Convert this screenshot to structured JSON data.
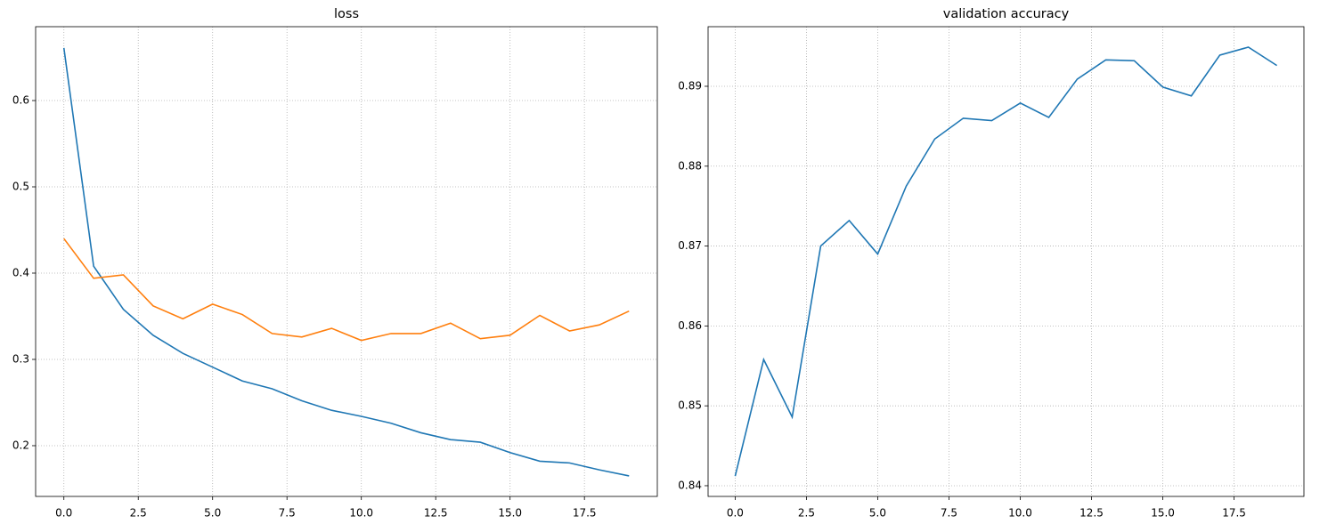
{
  "chart_data": [
    {
      "type": "line",
      "title": "loss",
      "x": [
        0,
        1,
        2,
        3,
        4,
        5,
        6,
        7,
        8,
        9,
        10,
        11,
        12,
        13,
        14,
        15,
        16,
        17,
        18,
        19
      ],
      "series": [
        {
          "color": "#1f77b4",
          "values": [
            0.661,
            0.408,
            0.358,
            0.328,
            0.307,
            0.291,
            0.275,
            0.266,
            0.252,
            0.241,
            0.234,
            0.226,
            0.215,
            0.207,
            0.204,
            0.192,
            0.182,
            0.18,
            0.172,
            0.165
          ]
        },
        {
          "color": "#ff7f0e",
          "values": [
            0.44,
            0.394,
            0.398,
            0.362,
            0.347,
            0.364,
            0.352,
            0.33,
            0.326,
            0.336,
            0.322,
            0.33,
            0.33,
            0.342,
            0.324,
            0.328,
            0.351,
            0.333,
            0.34,
            0.356
          ]
        }
      ],
      "xlim": [
        -0.95,
        19.95
      ],
      "xticks": [
        {
          "value": 0,
          "label": "0.0"
        },
        2.5,
        {
          "value": 5,
          "label": "5.0"
        },
        7.5,
        {
          "value": 10,
          "label": "10.0"
        },
        12.5,
        {
          "value": 15,
          "label": "15.0"
        },
        17.5
      ],
      "ylim": [
        0.1412,
        0.6856
      ],
      "yticks": [
        0.2,
        0.3,
        0.4,
        0.5,
        0.6
      ],
      "grid": true
    },
    {
      "type": "line",
      "title": "validation accuracy",
      "x": [
        0,
        1,
        2,
        3,
        4,
        5,
        6,
        7,
        8,
        9,
        10,
        11,
        12,
        13,
        14,
        15,
        16,
        17,
        18,
        19
      ],
      "series": [
        {
          "color": "#1f77b4",
          "values": [
            0.8412,
            0.8558,
            0.8486,
            0.87,
            0.8732,
            0.869,
            0.8775,
            0.8834,
            0.886,
            0.8857,
            0.8879,
            0.8861,
            0.8909,
            0.8933,
            0.8932,
            0.8899,
            0.8888,
            0.8939,
            0.8949,
            0.8926
          ]
        }
      ],
      "xlim": [
        -0.95,
        19.95
      ],
      "xticks": [
        {
          "value": 0,
          "label": "0.0"
        },
        2.5,
        {
          "value": 5,
          "label": "5.0"
        },
        7.5,
        {
          "value": 10,
          "label": "10.0"
        },
        12.5,
        {
          "value": 15,
          "label": "15.0"
        },
        17.5
      ],
      "ylim": [
        0.83866,
        0.89746
      ],
      "yticks": [
        0.84,
        0.85,
        0.86,
        0.87,
        0.88,
        0.89
      ],
      "grid": true
    }
  ]
}
